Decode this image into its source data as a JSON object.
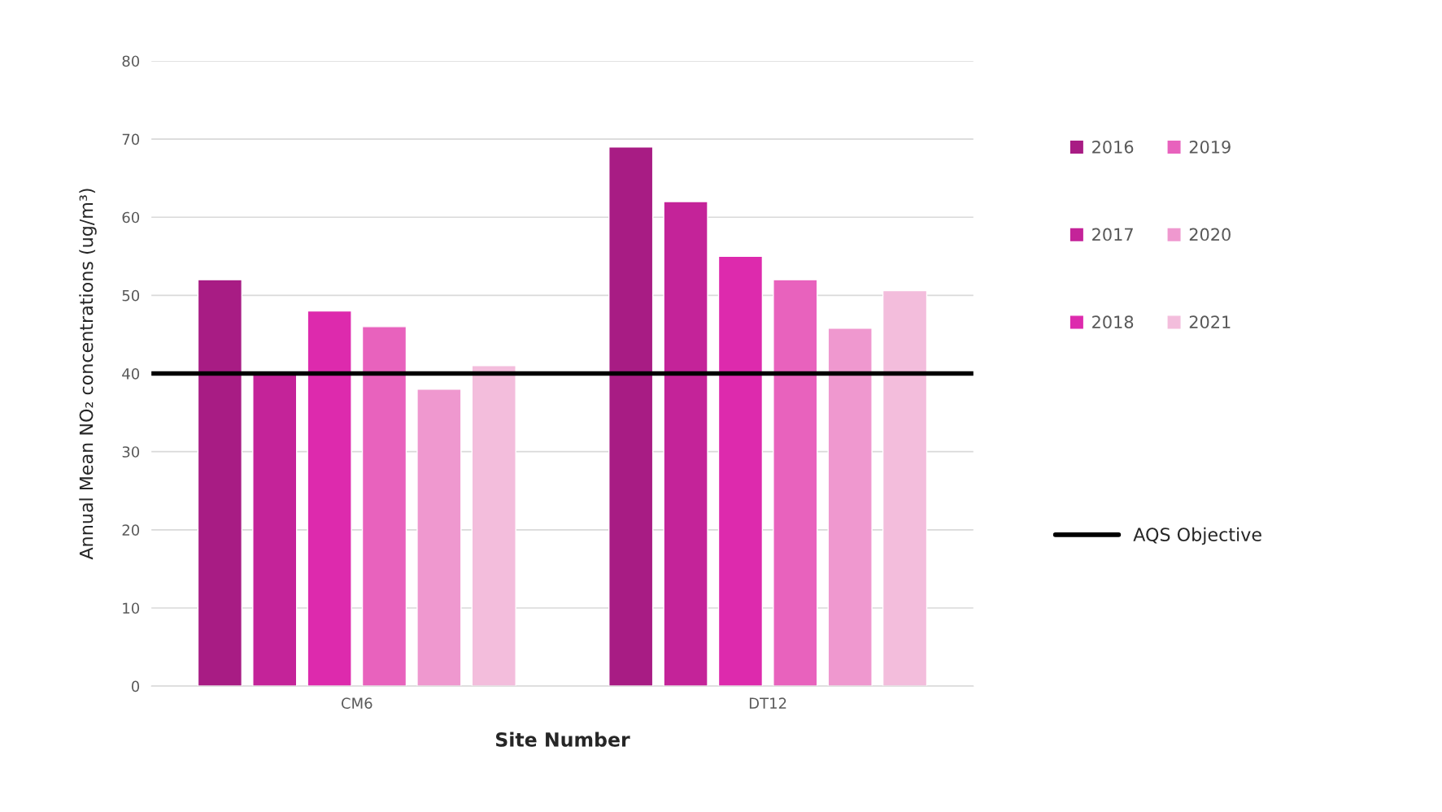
{
  "chart_data": {
    "type": "bar",
    "categories": [
      "CM6",
      "DT12"
    ],
    "xlabel": "Site Number",
    "ylabel": "Annual Mean NO₂ concentrations (ug/m³)",
    "series": [
      {
        "name": "2016",
        "color": "#a81c84",
        "values": [
          52,
          69
        ]
      },
      {
        "name": "2017",
        "color": "#c42399",
        "values": [
          40,
          62
        ]
      },
      {
        "name": "2018",
        "color": "#dd2aad",
        "values": [
          48,
          55
        ]
      },
      {
        "name": "2019",
        "color": "#e862bd",
        "values": [
          46,
          52
        ]
      },
      {
        "name": "2020",
        "color": "#ef98cf",
        "values": [
          38,
          45.8
        ]
      },
      {
        "name": "2021",
        "color": "#f3bddc",
        "values": [
          41,
          50.6
        ]
      }
    ],
    "ref_lines": [
      {
        "axis": "y",
        "value": 40,
        "label": "AQS Objective",
        "color": "#000000",
        "line_style": "solid"
      }
    ],
    "ylim": [
      0,
      80
    ],
    "yticks": [
      0,
      10,
      20,
      30,
      40,
      50,
      60,
      70,
      80
    ],
    "grid": "y",
    "legend": "right"
  }
}
